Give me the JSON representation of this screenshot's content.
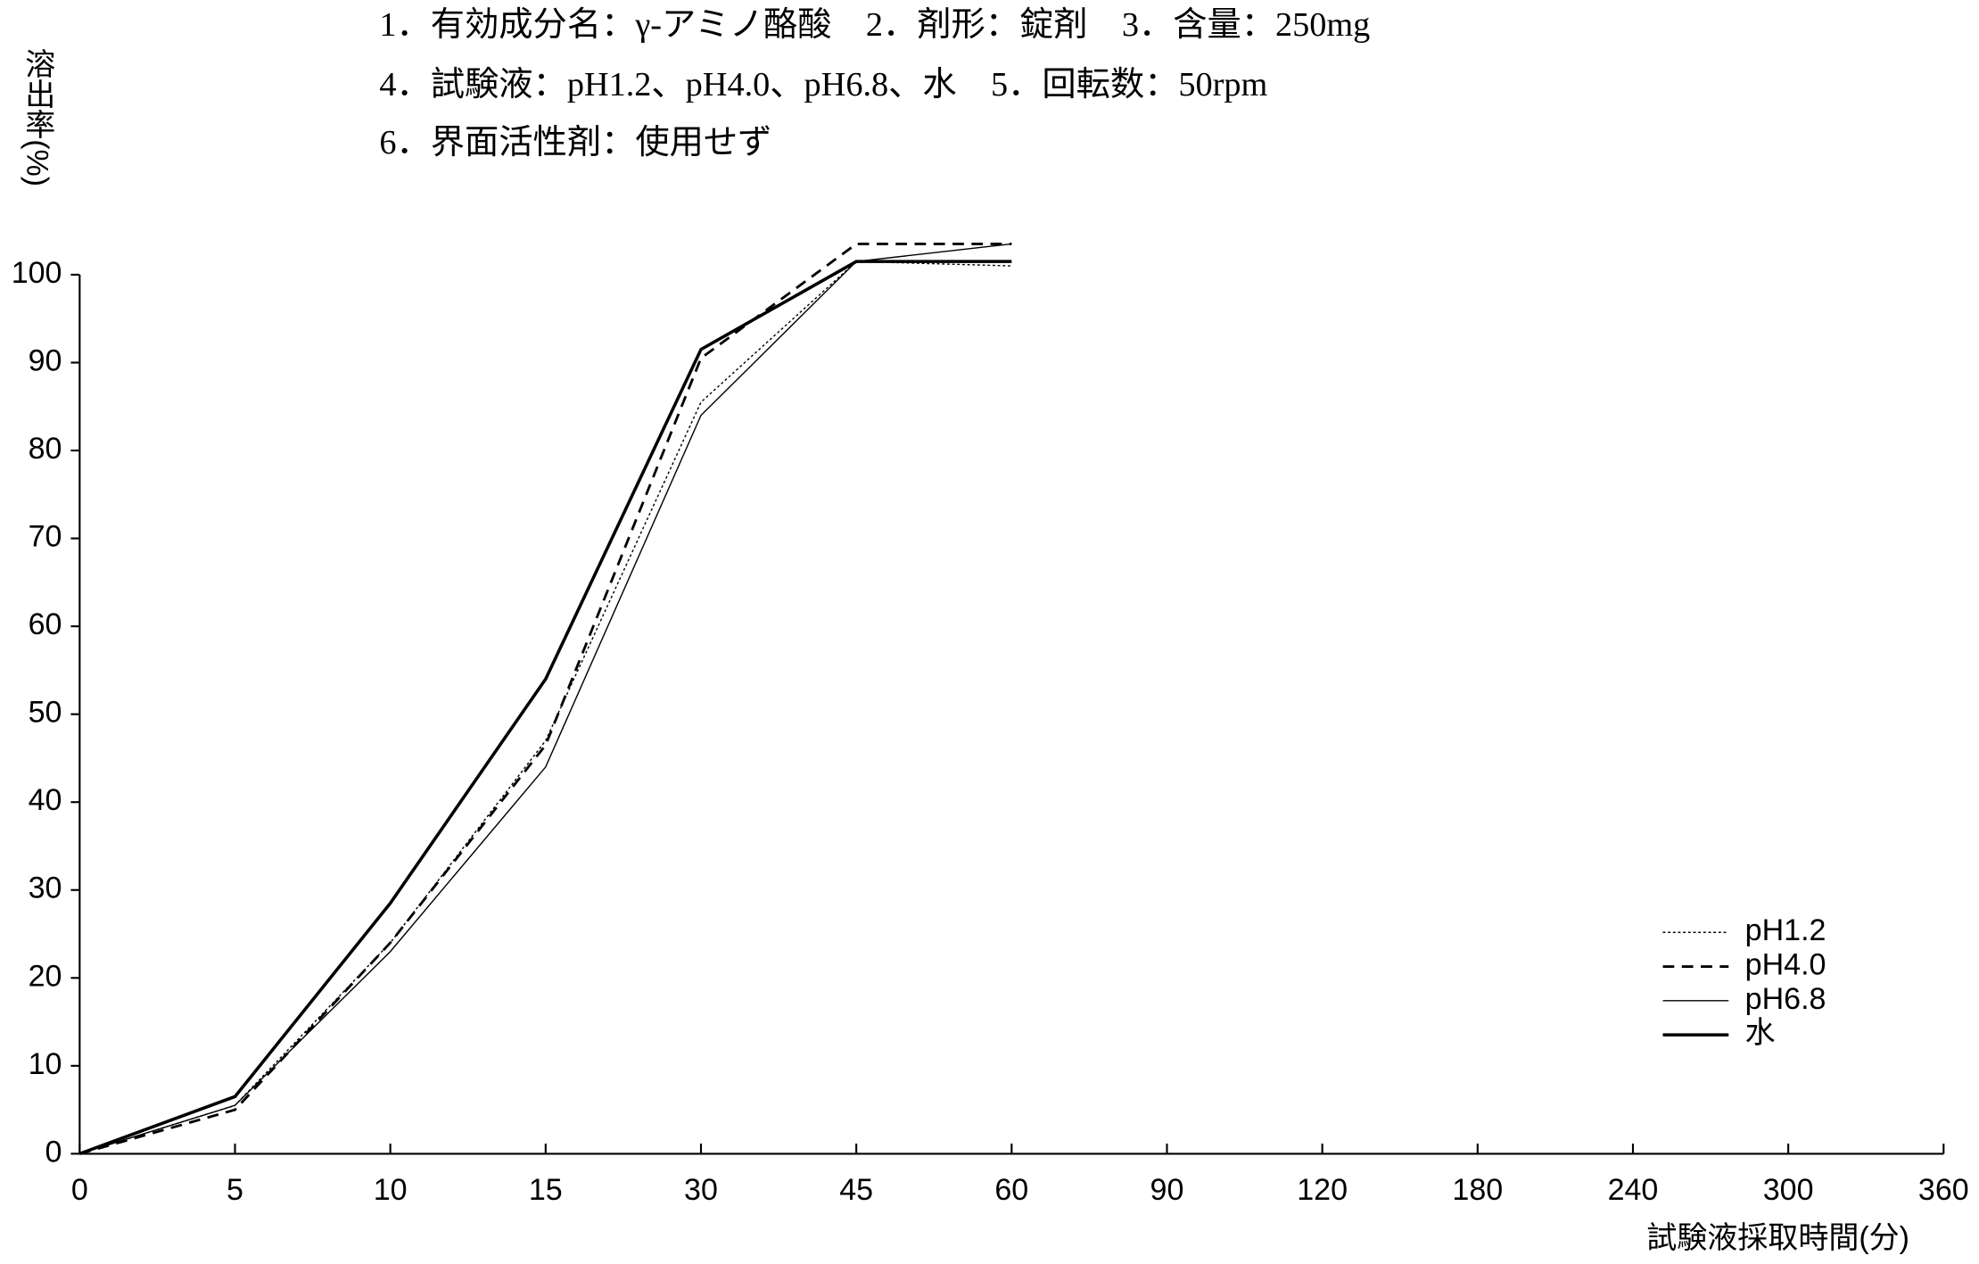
{
  "chart_data": {
    "type": "line",
    "title": [
      "1．有効成分名：γ-アミノ酪酸　2．剤形：錠剤　3．含量：250mg",
      "4．試験液：pH1.2、pH4.0、pH6.8、水　5．回転数：50rpm",
      "6．界面活性剤：使用せず"
    ],
    "ylabel": "溶出率(%)",
    "xlabel": "試験液採取時間(分)",
    "categories": [
      "0",
      "5",
      "10",
      "15",
      "30",
      "45",
      "60",
      "90",
      "120",
      "180",
      "240",
      "300",
      "360"
    ],
    "series": [
      {
        "name": "pH1.2",
        "color": "#000000",
        "style": "dotted",
        "linewidth": 1,
        "values": [
          0,
          5.5,
          24,
          47,
          85.5,
          101.5,
          101,
          null,
          null,
          null,
          null,
          null,
          null
        ]
      },
      {
        "name": "pH4.0",
        "color": "#000000",
        "style": "dashed",
        "linewidth": 2,
        "values": [
          0,
          5,
          24,
          46.5,
          90.5,
          103.5,
          103.5,
          null,
          null,
          null,
          null,
          null,
          null
        ]
      },
      {
        "name": "pH6.8",
        "color": "#000000",
        "style": "solid",
        "linewidth": 1,
        "values": [
          0,
          5.5,
          23,
          44,
          84,
          101.5,
          103.5,
          null,
          null,
          null,
          null,
          null,
          null
        ]
      },
      {
        "name": "水",
        "color": "#000000",
        "style": "solid",
        "linewidth": 2.5,
        "values": [
          0,
          6.5,
          28.5,
          54,
          91.5,
          101.5,
          101.5,
          null,
          null,
          null,
          null,
          null,
          null
        ]
      }
    ],
    "ylim": [
      0,
      100
    ],
    "yticks": [
      0,
      10,
      20,
      30,
      40,
      50,
      60,
      70,
      80,
      90,
      100
    ],
    "grid": false,
    "legend": "lower right"
  }
}
